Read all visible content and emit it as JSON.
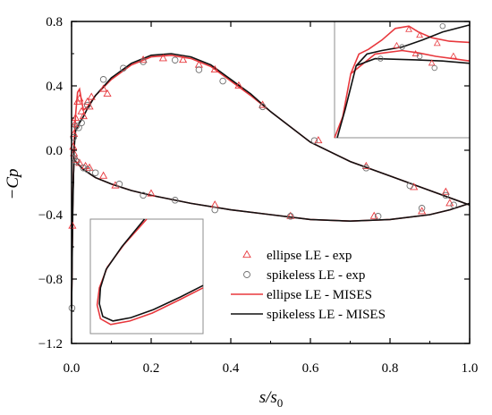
{
  "chart_data": {
    "type": "scatter",
    "xlabel_main": "s/s",
    "xlabel_sub": "0",
    "ylabel": "−Cp",
    "xlim": [
      0.0,
      1.0
    ],
    "ylim": [
      -1.2,
      0.8
    ],
    "x_ticks": [
      "0.0",
      "0.2",
      "0.4",
      "0.6",
      "0.8",
      "1.0"
    ],
    "y_ticks": [
      "0.8",
      "0.4",
      "0.0",
      "−0.4",
      "−0.8",
      "−1.2"
    ],
    "legend_position": "lower-right",
    "colors": {
      "ellipse": "#e8383d",
      "spikeless": "#111111",
      "frame": "#000000",
      "inset_frame": "#8c8c8c"
    },
    "series": [
      {
        "name": "ellipse LE - exp",
        "marker": "triangle",
        "points": [
          [
            0.004,
            0.02
          ],
          [
            0.006,
            0.1
          ],
          [
            0.008,
            0.16
          ],
          [
            0.01,
            0.2
          ],
          [
            0.015,
            0.3
          ],
          [
            0.02,
            0.32
          ],
          [
            0.025,
            0.24
          ],
          [
            0.03,
            0.21
          ],
          [
            0.04,
            0.3
          ],
          [
            0.045,
            0.27
          ],
          [
            0.05,
            0.33
          ],
          [
            0.08,
            0.38
          ],
          [
            0.09,
            0.35
          ],
          [
            0.18,
            0.56
          ],
          [
            0.23,
            0.57
          ],
          [
            0.28,
            0.56
          ],
          [
            0.32,
            0.53
          ],
          [
            0.36,
            0.5
          ],
          [
            0.42,
            0.4
          ],
          [
            0.48,
            0.28
          ],
          [
            0.62,
            0.06
          ],
          [
            0.74,
            -0.1
          ],
          [
            0.86,
            -0.23
          ],
          [
            0.94,
            -0.26
          ],
          [
            0.002,
            -0.47
          ],
          [
            0.006,
            -0.02
          ],
          [
            0.012,
            -0.06
          ],
          [
            0.02,
            -0.08
          ],
          [
            0.035,
            -0.1
          ],
          [
            0.045,
            -0.11
          ],
          [
            0.08,
            -0.16
          ],
          [
            0.11,
            -0.22
          ],
          [
            0.2,
            -0.27
          ],
          [
            0.36,
            -0.34
          ],
          [
            0.55,
            -0.41
          ],
          [
            0.76,
            -0.41
          ],
          [
            0.88,
            -0.38
          ],
          [
            0.95,
            -0.33
          ]
        ]
      },
      {
        "name": "spikeless LE - exp",
        "marker": "circle",
        "points": [
          [
            0.005,
            0.08
          ],
          [
            0.012,
            0.15
          ],
          [
            0.018,
            0.14
          ],
          [
            0.025,
            0.17
          ],
          [
            0.04,
            0.28
          ],
          [
            0.08,
            0.44
          ],
          [
            0.13,
            0.51
          ],
          [
            0.18,
            0.55
          ],
          [
            0.26,
            0.56
          ],
          [
            0.32,
            0.5
          ],
          [
            0.38,
            0.43
          ],
          [
            0.48,
            0.27
          ],
          [
            0.61,
            0.06
          ],
          [
            0.74,
            -0.11
          ],
          [
            0.85,
            -0.22
          ],
          [
            0.94,
            -0.28
          ],
          [
            0.001,
            -0.98
          ],
          [
            0.006,
            -0.05
          ],
          [
            0.012,
            -0.07
          ],
          [
            0.03,
            -0.11
          ],
          [
            0.04,
            -0.12
          ],
          [
            0.06,
            -0.14
          ],
          [
            0.12,
            -0.21
          ],
          [
            0.18,
            -0.28
          ],
          [
            0.26,
            -0.31
          ],
          [
            0.36,
            -0.37
          ],
          [
            0.55,
            -0.41
          ],
          [
            0.77,
            -0.41
          ],
          [
            0.88,
            -0.36
          ],
          [
            0.96,
            -0.34
          ]
        ]
      },
      {
        "name": "ellipse LE - MISES",
        "marker": "line",
        "upper": [
          [
            0.0,
            -0.97
          ],
          [
            0.003,
            -0.35
          ],
          [
            0.006,
            0.05
          ],
          [
            0.01,
            0.22
          ],
          [
            0.015,
            0.36
          ],
          [
            0.02,
            0.38
          ],
          [
            0.025,
            0.31
          ],
          [
            0.03,
            0.25
          ],
          [
            0.04,
            0.27
          ],
          [
            0.06,
            0.34
          ],
          [
            0.1,
            0.44
          ],
          [
            0.15,
            0.53
          ],
          [
            0.2,
            0.58
          ],
          [
            0.25,
            0.59
          ],
          [
            0.3,
            0.57
          ],
          [
            0.35,
            0.52
          ],
          [
            0.4,
            0.43
          ],
          [
            0.45,
            0.34
          ],
          [
            0.5,
            0.24
          ],
          [
            0.6,
            0.05
          ],
          [
            0.7,
            -0.07
          ],
          [
            0.8,
            -0.16
          ],
          [
            0.9,
            -0.25
          ],
          [
            1.0,
            -0.34
          ]
        ],
        "lower": [
          [
            0.0,
            -0.97
          ],
          [
            0.003,
            -0.3
          ],
          [
            0.006,
            -0.06
          ],
          [
            0.01,
            -0.07
          ],
          [
            0.03,
            -0.12
          ],
          [
            0.06,
            -0.17
          ],
          [
            0.1,
            -0.21
          ],
          [
            0.15,
            -0.25
          ],
          [
            0.2,
            -0.28
          ],
          [
            0.3,
            -0.33
          ],
          [
            0.4,
            -0.37
          ],
          [
            0.5,
            -0.4
          ],
          [
            0.6,
            -0.43
          ],
          [
            0.7,
            -0.44
          ],
          [
            0.8,
            -0.43
          ],
          [
            0.9,
            -0.4
          ],
          [
            0.95,
            -0.37
          ],
          [
            1.0,
            -0.33
          ]
        ]
      },
      {
        "name": "spikeless LE - MISES",
        "marker": "line",
        "upper": [
          [
            0.0,
            -0.98
          ],
          [
            0.003,
            -0.4
          ],
          [
            0.006,
            0.0
          ],
          [
            0.01,
            0.12
          ],
          [
            0.02,
            0.17
          ],
          [
            0.03,
            0.21
          ],
          [
            0.04,
            0.26
          ],
          [
            0.06,
            0.34
          ],
          [
            0.1,
            0.45
          ],
          [
            0.15,
            0.54
          ],
          [
            0.2,
            0.59
          ],
          [
            0.25,
            0.6
          ],
          [
            0.3,
            0.58
          ],
          [
            0.35,
            0.53
          ],
          [
            0.4,
            0.44
          ],
          [
            0.45,
            0.35
          ],
          [
            0.5,
            0.24
          ],
          [
            0.6,
            0.05
          ],
          [
            0.7,
            -0.07
          ],
          [
            0.8,
            -0.16
          ],
          [
            0.9,
            -0.25
          ],
          [
            1.0,
            -0.34
          ]
        ],
        "lower": [
          [
            0.0,
            -0.98
          ],
          [
            0.003,
            -0.32
          ],
          [
            0.006,
            -0.05
          ],
          [
            0.01,
            -0.07
          ],
          [
            0.03,
            -0.12
          ],
          [
            0.06,
            -0.17
          ],
          [
            0.1,
            -0.21
          ],
          [
            0.15,
            -0.25
          ],
          [
            0.2,
            -0.28
          ],
          [
            0.3,
            -0.33
          ],
          [
            0.4,
            -0.37
          ],
          [
            0.5,
            -0.4
          ],
          [
            0.6,
            -0.43
          ],
          [
            0.7,
            -0.44
          ],
          [
            0.8,
            -0.43
          ],
          [
            0.9,
            -0.4
          ],
          [
            0.95,
            -0.37
          ],
          [
            1.0,
            -0.33
          ]
        ]
      }
    ],
    "insets": [
      {
        "location": "top-right",
        "ellipse_exp": [
          [
            0.46,
            0.79
          ],
          [
            0.55,
            0.93
          ],
          [
            0.63,
            0.88
          ],
          [
            0.76,
            0.81
          ],
          [
            0.88,
            0.7
          ],
          [
            0.6,
            0.72
          ],
          [
            0.72,
            0.64
          ]
        ],
        "spikeless_exp": [
          [
            0.34,
            0.68
          ],
          [
            0.5,
            0.78
          ],
          [
            0.8,
            0.96
          ],
          [
            0.63,
            0.7
          ],
          [
            0.74,
            0.6
          ]
        ],
        "ellipse_mises": [
          [
            [
              0.0,
              0.0
            ],
            [
              0.06,
              0.18
            ],
            [
              0.12,
              0.55
            ],
            [
              0.18,
              0.72
            ],
            [
              0.25,
              0.76
            ],
            [
              0.35,
              0.84
            ],
            [
              0.45,
              0.94
            ],
            [
              0.55,
              0.96
            ],
            [
              0.62,
              0.91
            ],
            [
              0.72,
              0.86
            ],
            [
              0.85,
              0.83
            ],
            [
              1.0,
              0.82
            ]
          ],
          [
            [
              0.12,
              0.55
            ],
            [
              0.3,
              0.72
            ],
            [
              0.5,
              0.75
            ],
            [
              0.62,
              0.73
            ],
            [
              0.75,
              0.7
            ],
            [
              1.0,
              0.66
            ]
          ]
        ],
        "spikeless_mises": [
          [
            [
              0.02,
              0.0
            ],
            [
              0.08,
              0.25
            ],
            [
              0.16,
              0.62
            ],
            [
              0.24,
              0.72
            ],
            [
              0.35,
              0.75
            ],
            [
              0.5,
              0.78
            ],
            [
              0.65,
              0.84
            ],
            [
              0.8,
              0.91
            ],
            [
              1.0,
              0.97
            ]
          ],
          [
            [
              0.16,
              0.62
            ],
            [
              0.3,
              0.68
            ],
            [
              0.6,
              0.67
            ],
            [
              0.8,
              0.66
            ],
            [
              1.0,
              0.64
            ]
          ]
        ]
      },
      {
        "location": "bottom-left",
        "ellipse_mises": [
          [
            [
              0.5,
              1.0
            ],
            [
              0.3,
              0.78
            ],
            [
              0.15,
              0.58
            ],
            [
              0.08,
              0.4
            ],
            [
              0.06,
              0.25
            ],
            [
              0.09,
              0.13
            ],
            [
              0.18,
              0.08
            ],
            [
              0.35,
              0.11
            ],
            [
              0.55,
              0.18
            ],
            [
              0.8,
              0.3
            ],
            [
              1.0,
              0.4
            ]
          ]
        ],
        "spikeless_mises": [
          [
            [
              0.48,
              1.0
            ],
            [
              0.28,
              0.76
            ],
            [
              0.14,
              0.56
            ],
            [
              0.09,
              0.4
            ],
            [
              0.08,
              0.26
            ],
            [
              0.11,
              0.15
            ],
            [
              0.2,
              0.11
            ],
            [
              0.36,
              0.14
            ],
            [
              0.56,
              0.21
            ],
            [
              0.8,
              0.32
            ],
            [
              1.0,
              0.42
            ]
          ]
        ]
      }
    ]
  },
  "legend": {
    "items": [
      {
        "label": "ellipse LE - exp",
        "marker": "triangle",
        "color": "#e8383d"
      },
      {
        "label": "spikeless LE - exp",
        "marker": "circle",
        "color": "#6e6e6e"
      },
      {
        "label": "ellipse LE - MISES",
        "marker": "line",
        "color": "#e8383d"
      },
      {
        "label": "spikeless LE - MISES",
        "marker": "line",
        "color": "#111111"
      }
    ]
  }
}
